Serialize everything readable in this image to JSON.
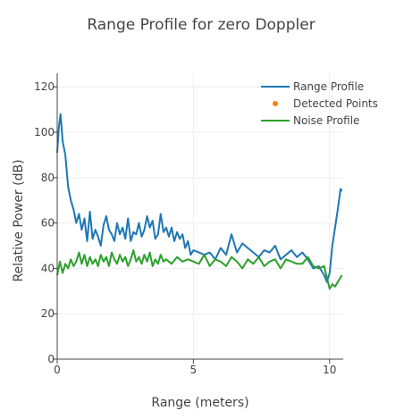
{
  "chart_data": {
    "type": "line",
    "title": "Range Profile for zero Doppler",
    "xlabel": "Range (meters)",
    "ylabel": "Relative Power (dB)",
    "xlim": [
      0,
      10.5
    ],
    "ylim": [
      0,
      126
    ],
    "xticks": [
      0,
      5,
      10
    ],
    "yticks": [
      0,
      20,
      40,
      60,
      80,
      100,
      120
    ],
    "grid": true,
    "legend_position": "top-right",
    "series": [
      {
        "name": "Range Profile",
        "color": "#1f77b4",
        "x": [
          0,
          0.06,
          0.12,
          0.2,
          0.3,
          0.4,
          0.5,
          0.6,
          0.7,
          0.8,
          0.9,
          1.0,
          1.1,
          1.2,
          1.3,
          1.4,
          1.5,
          1.6,
          1.7,
          1.8,
          1.9,
          2.0,
          2.1,
          2.2,
          2.3,
          2.4,
          2.5,
          2.6,
          2.7,
          2.8,
          2.9,
          3.0,
          3.1,
          3.2,
          3.3,
          3.4,
          3.5,
          3.6,
          3.7,
          3.8,
          3.9,
          4.0,
          4.1,
          4.2,
          4.3,
          4.4,
          4.5,
          4.6,
          4.7,
          4.8,
          4.9,
          5.0,
          5.2,
          5.4,
          5.6,
          5.8,
          6.0,
          6.2,
          6.4,
          6.6,
          6.8,
          7.0,
          7.2,
          7.4,
          7.6,
          7.8,
          8.0,
          8.2,
          8.4,
          8.6,
          8.8,
          9.0,
          9.2,
          9.4,
          9.6,
          9.8,
          9.9,
          10.0,
          10.1,
          10.2,
          10.3,
          10.4,
          10.45
        ],
        "values": [
          91,
          102,
          108,
          96,
          90,
          76,
          70,
          66,
          60,
          64,
          57,
          62,
          52,
          65,
          53,
          57,
          54,
          50,
          59,
          63,
          57,
          55,
          52,
          60,
          55,
          58,
          53,
          62,
          52,
          56,
          55,
          60,
          54,
          57,
          63,
          58,
          61,
          53,
          55,
          64,
          56,
          58,
          54,
          58,
          52,
          56,
          53,
          55,
          49,
          52,
          46,
          48,
          47,
          46,
          47,
          44,
          49,
          46,
          55,
          47,
          51,
          49,
          47,
          45,
          48,
          47,
          50,
          44,
          46,
          48,
          45,
          47,
          44,
          40,
          41,
          37,
          34,
          38,
          50,
          58,
          66,
          75,
          74
        ]
      },
      {
        "name": "Detected Points",
        "color": "#ff7f0e",
        "x": [],
        "values": []
      },
      {
        "name": "Noise Profile",
        "color": "#2ca02c",
        "x": [
          0,
          0.1,
          0.2,
          0.3,
          0.4,
          0.5,
          0.6,
          0.7,
          0.8,
          0.9,
          1.0,
          1.1,
          1.2,
          1.3,
          1.4,
          1.5,
          1.6,
          1.7,
          1.8,
          1.9,
          2.0,
          2.1,
          2.2,
          2.3,
          2.4,
          2.5,
          2.6,
          2.7,
          2.8,
          2.9,
          3.0,
          3.1,
          3.2,
          3.3,
          3.4,
          3.5,
          3.6,
          3.7,
          3.8,
          3.9,
          4.0,
          4.2,
          4.4,
          4.6,
          4.8,
          5.0,
          5.2,
          5.4,
          5.6,
          5.8,
          6.0,
          6.2,
          6.4,
          6.6,
          6.8,
          7.0,
          7.2,
          7.4,
          7.6,
          7.8,
          8.0,
          8.2,
          8.4,
          8.6,
          8.8,
          9.0,
          9.2,
          9.4,
          9.6,
          9.8,
          9.9,
          10.0,
          10.1,
          10.2,
          10.3,
          10.45
        ],
        "values": [
          37,
          43,
          38,
          42,
          40,
          44,
          41,
          43,
          47,
          42,
          46,
          41,
          45,
          42,
          44,
          41,
          46,
          43,
          45,
          41,
          47,
          44,
          42,
          46,
          43,
          45,
          41,
          44,
          48,
          43,
          45,
          42,
          46,
          43,
          47,
          41,
          44,
          42,
          46,
          43,
          44,
          42,
          45,
          43,
          44,
          43,
          42,
          46,
          41,
          44,
          43,
          41,
          45,
          43,
          40,
          44,
          42,
          45,
          41,
          43,
          44,
          40,
          44,
          43,
          42,
          42,
          45,
          41,
          40,
          41,
          36,
          31,
          33,
          32,
          34,
          37
        ]
      }
    ]
  }
}
